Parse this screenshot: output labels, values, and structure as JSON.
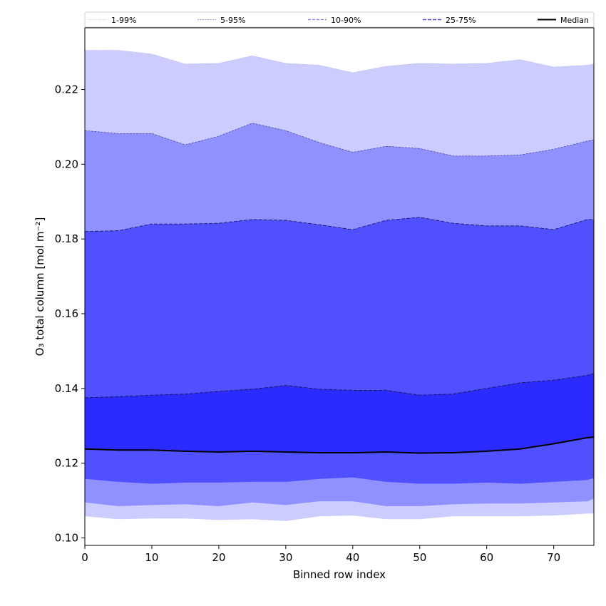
{
  "chart_data": {
    "type": "area",
    "xlabel": "Binned row index",
    "ylabel": "O₃ total column [mol m⁻²]",
    "xlim": [
      0,
      76
    ],
    "ylim": [
      0.098,
      0.2365
    ],
    "xticks": [
      0,
      10,
      20,
      30,
      40,
      50,
      60,
      70
    ],
    "yticks": [
      0.1,
      0.12,
      0.14,
      0.16,
      0.18,
      0.2,
      0.22
    ],
    "legend_position": "top, outside plot",
    "legend": [
      "1-99%",
      "5-95%",
      "10-90%",
      "25-75%",
      "Median"
    ],
    "colors": {
      "band_1_99": "#ccccff",
      "band_5_95": "#9090ff",
      "band_10_90": "#5050ff",
      "band_25_75": "#2b2bff",
      "median": "#000000",
      "edge": "#1a1a66"
    },
    "x": [
      0,
      5,
      10,
      15,
      20,
      25,
      30,
      35,
      40,
      45,
      50,
      55,
      60,
      65,
      70,
      75,
      76
    ],
    "bands": [
      {
        "name": "1-99%",
        "upper": [
          0.2305,
          0.2305,
          0.2295,
          0.2268,
          0.227,
          0.229,
          0.227,
          0.2265,
          0.2245,
          0.2262,
          0.227,
          0.2268,
          0.227,
          0.228,
          0.226,
          0.2265,
          0.2268
        ],
        "lower": [
          0.1058,
          0.105,
          0.1052,
          0.1052,
          0.1048,
          0.105,
          0.1045,
          0.1058,
          0.106,
          0.105,
          0.105,
          0.1058,
          0.1058,
          0.1058,
          0.106,
          0.1065,
          0.1065
        ]
      },
      {
        "name": "5-95%",
        "upper": [
          0.209,
          0.2082,
          0.2082,
          0.2052,
          0.2075,
          0.211,
          0.209,
          0.2058,
          0.2032,
          0.2048,
          0.2042,
          0.2022,
          0.2022,
          0.2025,
          0.204,
          0.2062,
          0.2065
        ],
        "lower": [
          0.1095,
          0.1085,
          0.1088,
          0.109,
          0.1085,
          0.1095,
          0.1088,
          0.1098,
          0.1098,
          0.1085,
          0.1085,
          0.109,
          0.1092,
          0.1092,
          0.1095,
          0.1098,
          0.1105
        ]
      },
      {
        "name": "10-90%",
        "upper": [
          0.182,
          0.1822,
          0.184,
          0.184,
          0.1842,
          0.1852,
          0.185,
          0.1838,
          0.1825,
          0.185,
          0.1858,
          0.1842,
          0.1835,
          0.1835,
          0.1825,
          0.1852,
          0.1852
        ],
        "lower": [
          0.1158,
          0.115,
          0.1145,
          0.1148,
          0.1148,
          0.115,
          0.115,
          0.1158,
          0.1162,
          0.115,
          0.1145,
          0.1145,
          0.1148,
          0.1145,
          0.115,
          0.1155,
          0.116
        ]
      },
      {
        "name": "25-75%",
        "upper": [
          0.1375,
          0.1378,
          0.1382,
          0.1385,
          0.1392,
          0.1398,
          0.1408,
          0.1398,
          0.1395,
          0.1395,
          0.1382,
          0.1385,
          0.14,
          0.1415,
          0.1422,
          0.1435,
          0.144
        ],
        "lower": [
          0.1238,
          0.1235,
          0.1235,
          0.1232,
          0.123,
          0.1232,
          0.123,
          0.1228,
          0.1228,
          0.123,
          0.1227,
          0.1228,
          0.1232,
          0.1238,
          0.1252,
          0.1268,
          0.127
        ]
      }
    ],
    "median": {
      "name": "Median",
      "values": [
        0.1238,
        0.1235,
        0.1235,
        0.1232,
        0.123,
        0.1232,
        0.123,
        0.1228,
        0.1228,
        0.123,
        0.1227,
        0.1228,
        0.1232,
        0.1238,
        0.1252,
        0.1268,
        0.127
      ]
    }
  }
}
